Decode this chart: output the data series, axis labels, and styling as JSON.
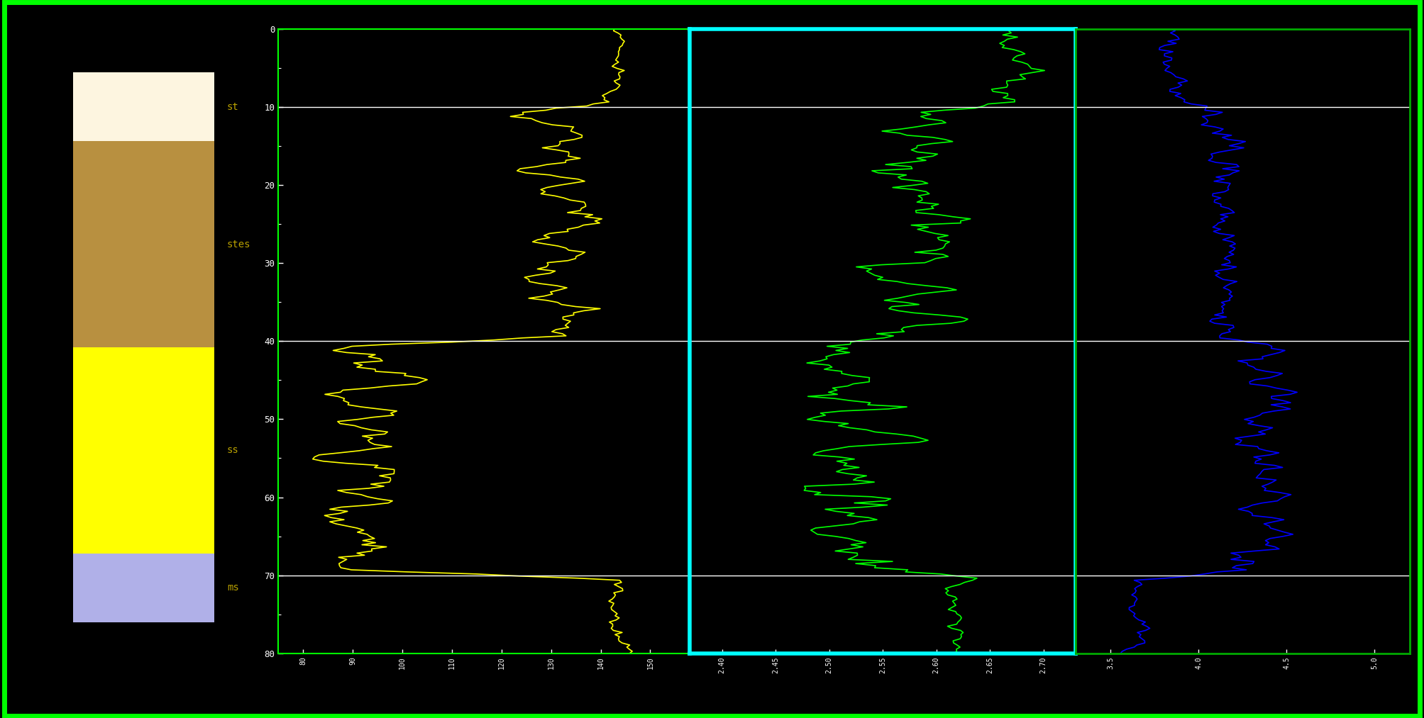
{
  "background_color": "#000000",
  "outer_border_color": "#00ff00",
  "outer_border_lw": 5,
  "depth_min": 0,
  "depth_max": 80,
  "depth_ticks": [
    0,
    10,
    20,
    30,
    40,
    50,
    60,
    70,
    80
  ],
  "formation_boundaries": [
    10,
    40,
    70
  ],
  "legend_colors": [
    "#fdf5e0",
    "#b89040",
    "#ffff00",
    "#b0b0e8"
  ],
  "legend_labels": [
    "st",
    "stes",
    "ss",
    "ms"
  ],
  "legend_label_color": "#b8a000",
  "panel1_xticks": [
    80,
    90,
    100,
    110,
    120,
    130,
    140,
    150
  ],
  "panel2_xticks": [
    2.4,
    2.45,
    2.5,
    2.55,
    2.6,
    2.65,
    2.7
  ],
  "panel3_xticks": [
    3.5,
    4.0,
    4.5,
    5.0
  ],
  "panel1_xlim": [
    75,
    158
  ],
  "panel2_xlim": [
    2.37,
    2.73
  ],
  "panel3_xlim": [
    3.3,
    5.2
  ],
  "panel1_line_color": "#ffff00",
  "panel2_line_color": "#00ff00",
  "panel3_line_color": "#0000ff",
  "panel2_border_color": "#00ffff",
  "panel3_border_color": "#00aa00",
  "tick_color": "#ffffff",
  "tick_label_color": "#ffffff",
  "grid_color": "#ffffff",
  "grid_lw": 1.0,
  "depth_axis_line_color": "#ffff00",
  "depth_axis_top_line_color": "#ffff00"
}
